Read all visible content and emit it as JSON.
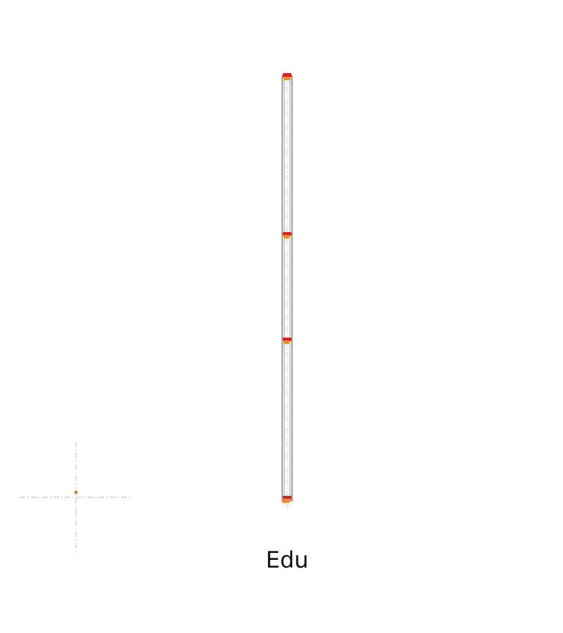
{
  "drawing": {
    "label": "Edu",
    "colors": {
      "background": "#ffffff",
      "outline": "#777777",
      "centerline": "#c8c8c8",
      "joint_red": "#e0201a",
      "joint_orange": "#f08a28",
      "origin_marker": "#f0a020"
    }
  }
}
